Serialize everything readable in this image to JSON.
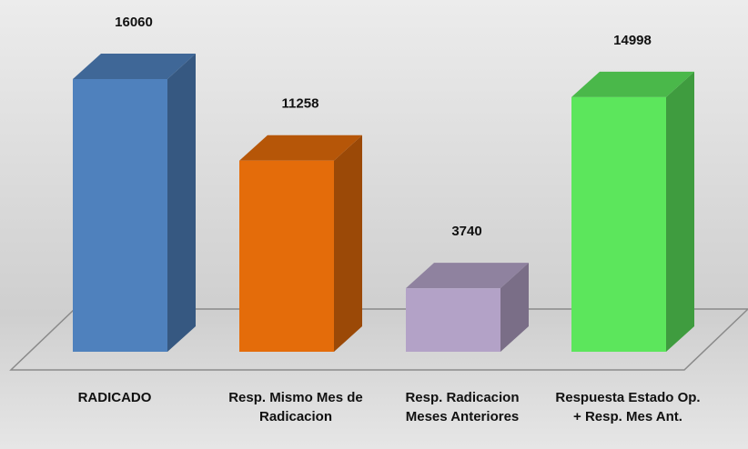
{
  "chart_data": {
    "type": "bar3d",
    "categories": [
      "RADICADO",
      "Resp. Mismo Mes de Radicacion",
      "Resp. Radicacion Meses Anteriores",
      "Respuesta Estado Op. + Resp. Mes Ant."
    ],
    "values": [
      16060,
      11258,
      3740,
      14998
    ],
    "colors": [
      "#4f81bd",
      "#e46c0a",
      "#b3a2c7",
      "#5ce65c"
    ]
  }
}
